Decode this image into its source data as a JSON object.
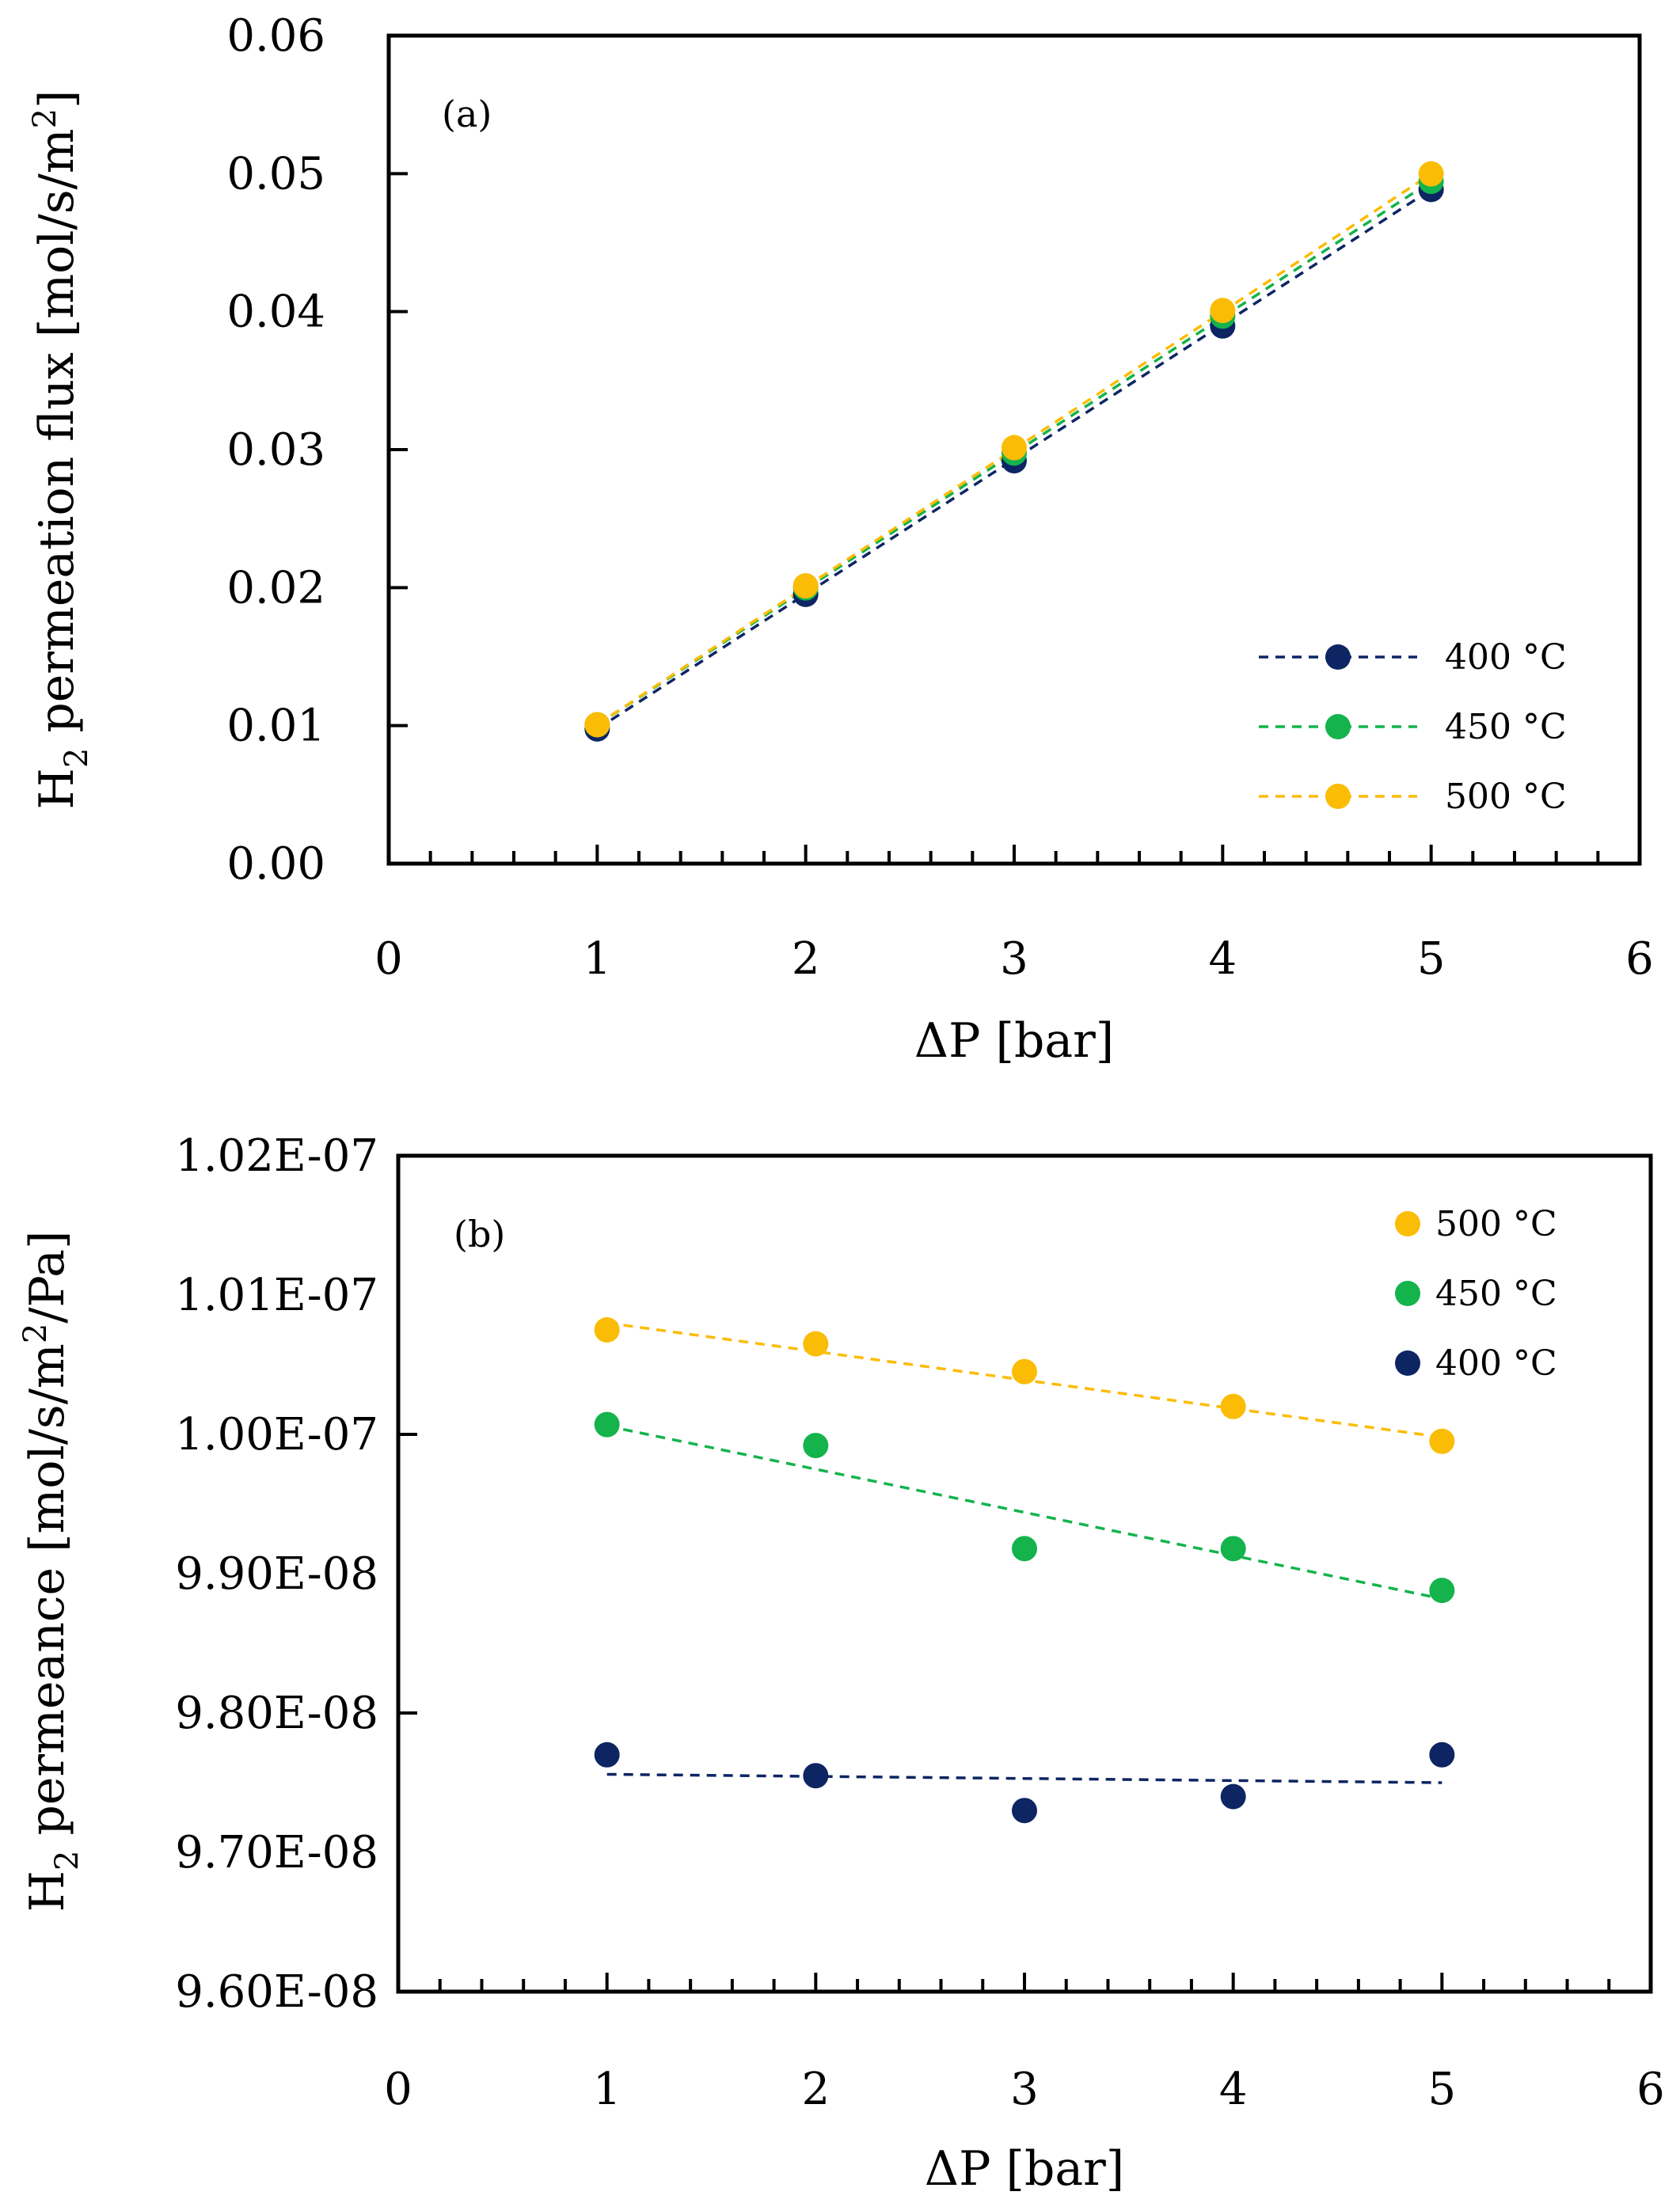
{
  "colors": {
    "400": "#0d2563",
    "450": "#14b34c",
    "500": "#fbbc05"
  },
  "chart_data": [
    {
      "type": "scatter",
      "panel": "(a)",
      "xlabel": "ΔP [bar]",
      "ylabel": {
        "pre": "H",
        "sub": "2",
        "post": " permeation flux [mol/s/m",
        "sup": "2",
        "end": "]"
      },
      "xlim": [
        0,
        6
      ],
      "ylim": [
        0,
        0.06
      ],
      "x_ticks": [
        "0",
        "1",
        "2",
        "3",
        "4",
        "5",
        "6"
      ],
      "y_ticks": [
        "0.00",
        "0.01",
        "0.02",
        "0.03",
        "0.04",
        "0.05",
        "0.06"
      ],
      "legend_position": "bottom-right",
      "series": [
        {
          "name": "400 °C",
          "color_key": "400",
          "x": [
            1,
            2,
            3,
            4,
            5
          ],
          "y": [
            0.00976,
            0.01951,
            0.02919,
            0.03896,
            0.04885
          ],
          "fit": [
            [
              1,
              0.00976
            ],
            [
              5,
              0.04885
            ]
          ]
        },
        {
          "name": "450 °C",
          "color_key": "450",
          "x": [
            1,
            2,
            3,
            4,
            5
          ],
          "y": [
            0.01006,
            0.01998,
            0.02975,
            0.03967,
            0.04944
          ],
          "fit": [
            [
              1,
              0.01006
            ],
            [
              5,
              0.04944
            ]
          ]
        },
        {
          "name": "500 °C",
          "color_key": "500",
          "x": [
            1,
            2,
            3,
            4,
            5
          ],
          "y": [
            0.01007,
            0.02013,
            0.03014,
            0.04008,
            0.04998
          ],
          "fit": [
            [
              1,
              0.01007
            ],
            [
              5,
              0.04998
            ]
          ]
        }
      ],
      "legend": [
        {
          "name": "400 °C",
          "color_key": "400"
        },
        {
          "name": "450 °C",
          "color_key": "450"
        },
        {
          "name": "500 °C",
          "color_key": "500"
        }
      ]
    },
    {
      "type": "scatter",
      "panel": "(b)",
      "xlabel": "ΔP [bar]",
      "ylabel": {
        "pre": "H",
        "sub": "2",
        "post": " permeance [mol/s/m",
        "sup": "2",
        "end": "/Pa]"
      },
      "xlim": [
        0,
        6
      ],
      "ylim": [
        9.6e-08,
        1.02e-07
      ],
      "x_ticks": [
        "0",
        "1",
        "2",
        "3",
        "4",
        "5",
        "6"
      ],
      "y_ticks": [
        "9.60E-08",
        "9.70E-08",
        "9.80E-08",
        "9.90E-08",
        "1.00E-07",
        "1.01E-07",
        "1.02E-07"
      ],
      "legend_position": "top-right",
      "series": [
        {
          "name": "500 °C",
          "color_key": "500",
          "x": [
            1,
            2,
            3,
            4,
            5
          ],
          "y": [
            1.0075e-07,
            1.0065e-07,
            1.0045e-07,
            1.002e-07,
            9.995e-08
          ],
          "fit": [
            [
              1,
              1.008e-07
            ],
            [
              5,
              9.998e-08
            ]
          ]
        },
        {
          "name": "450 °C",
          "color_key": "450",
          "x": [
            1,
            2,
            3,
            4,
            5
          ],
          "y": [
            1.0007e-07,
            9.992e-08,
            9.918e-08,
            9.918e-08,
            9.888e-08
          ],
          "fit": [
            [
              1,
              1.0006e-07
            ],
            [
              5,
              9.882e-08
            ]
          ]
        },
        {
          "name": "400 °C",
          "color_key": "400",
          "x": [
            1,
            2,
            3,
            4,
            5
          ],
          "y": [
            9.77e-08,
            9.755e-08,
            9.73e-08,
            9.74e-08,
            9.77e-08
          ],
          "fit": [
            [
              1,
              9.756e-08
            ],
            [
              5,
              9.75e-08
            ]
          ]
        }
      ],
      "legend": [
        {
          "name": "500 °C",
          "color_key": "500"
        },
        {
          "name": "450 °C",
          "color_key": "450"
        },
        {
          "name": "400 °C",
          "color_key": "400"
        }
      ]
    }
  ]
}
